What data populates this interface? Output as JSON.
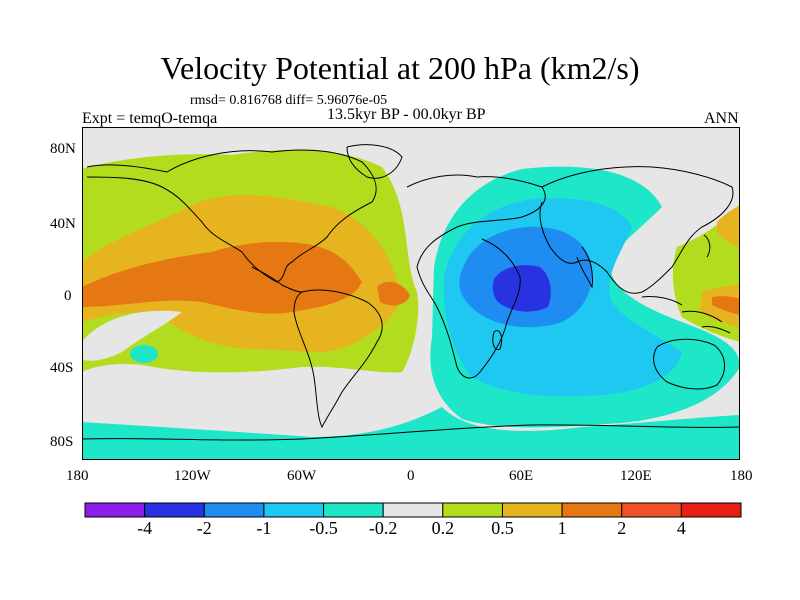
{
  "title": "Velocity Potential at 200 hPa (km2/s)",
  "stats": "rmsd= 0.816768 diff= 5.96076e-05",
  "period": "13.5kyr BP - 00.0kyr BP",
  "experiment": "Expt = temqO-temqa",
  "season": "ANN",
  "lat_labels": [
    "80N",
    "40N",
    "0",
    "40S",
    "80S"
  ],
  "lon_labels": [
    "180",
    "120W",
    "60W",
    "0",
    "60E",
    "120E",
    "180"
  ],
  "colorbar": {
    "labels": [
      "-4",
      "-2",
      "-1",
      "-0.5",
      "-0.2",
      "0.2",
      "0.5",
      "1",
      "2",
      "4"
    ],
    "colors": [
      "#8b1ee8",
      "#2832e0",
      "#1e8cf0",
      "#1ec8f0",
      "#1ee6c8",
      "#e6e6e6",
      "#b4dc1e",
      "#e6b41e",
      "#e67814",
      "#f05028",
      "#e61e14"
    ]
  }
}
